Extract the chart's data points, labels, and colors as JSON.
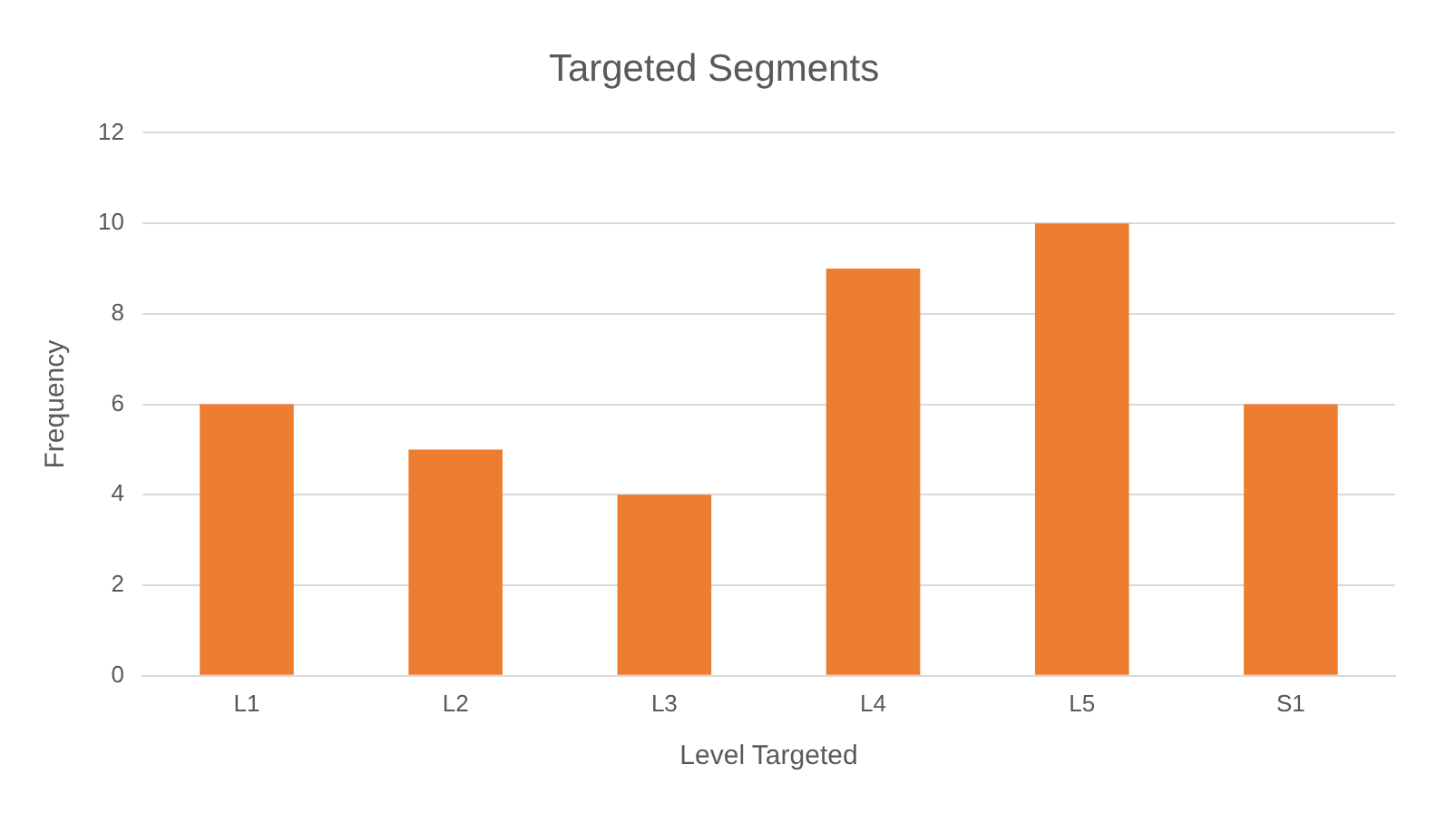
{
  "chart_data": {
    "type": "bar",
    "title": "Targeted Segments",
    "xlabel": "Level Targeted",
    "ylabel": "Frequency",
    "categories": [
      "L1",
      "L2",
      "L3",
      "L4",
      "L5",
      "S1"
    ],
    "values": [
      6,
      5,
      4,
      9,
      10,
      6
    ],
    "color": "#ed7d31",
    "ylim": [
      0,
      12
    ],
    "yticks": [
      0,
      2,
      4,
      6,
      8,
      10,
      12
    ],
    "grid": "y",
    "legend": false
  }
}
